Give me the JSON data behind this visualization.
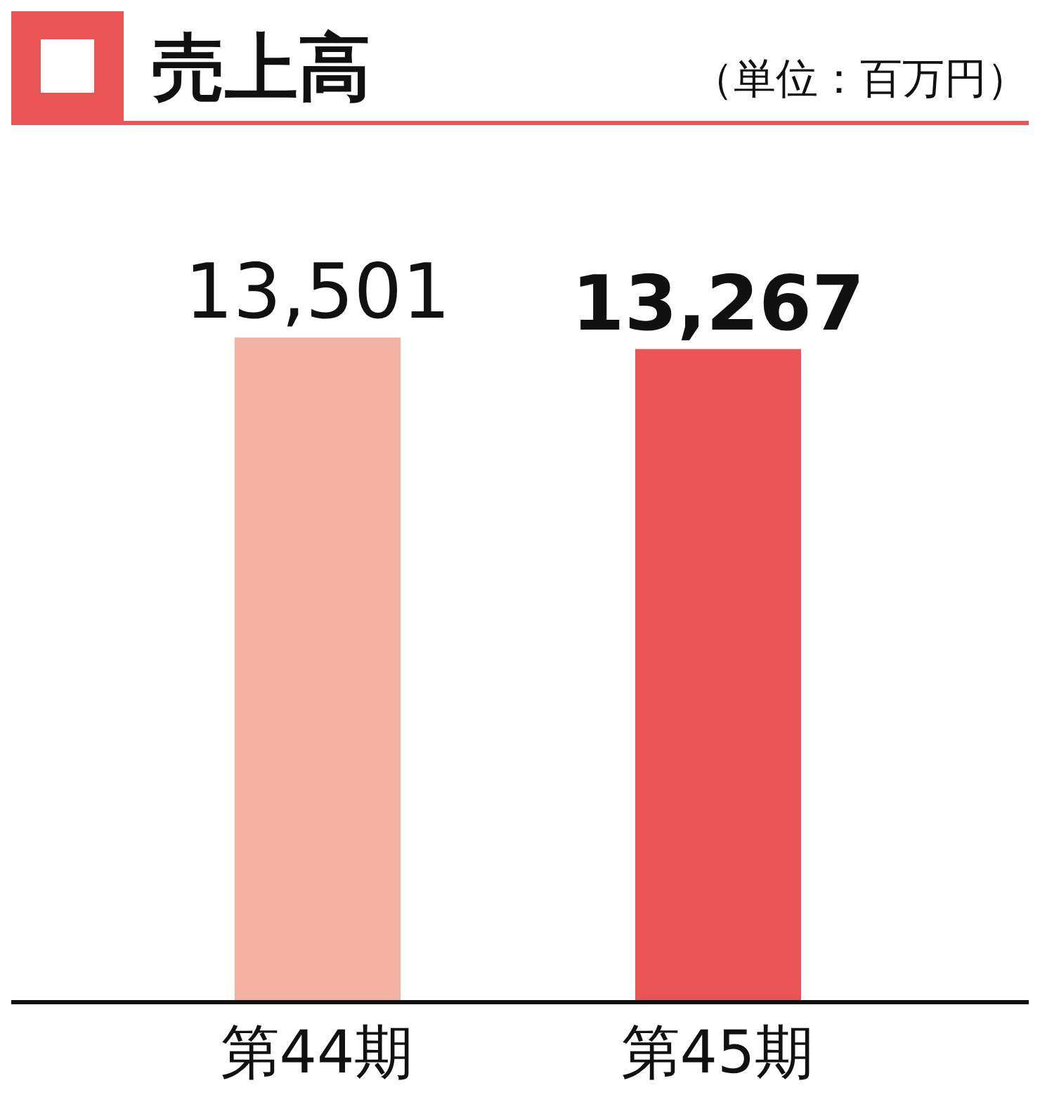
{
  "chart_data": {
    "type": "bar",
    "title": "売上高",
    "subtitle": "（単位：百万円）",
    "categories": [
      "第44期",
      "第45期"
    ],
    "values": [
      13501,
      13267
    ],
    "colors": [
      "#f4b3a2",
      "#eb5454"
    ],
    "value_labels": [
      "13,501",
      "13,267"
    ],
    "grid": false,
    "legend": false
  }
}
